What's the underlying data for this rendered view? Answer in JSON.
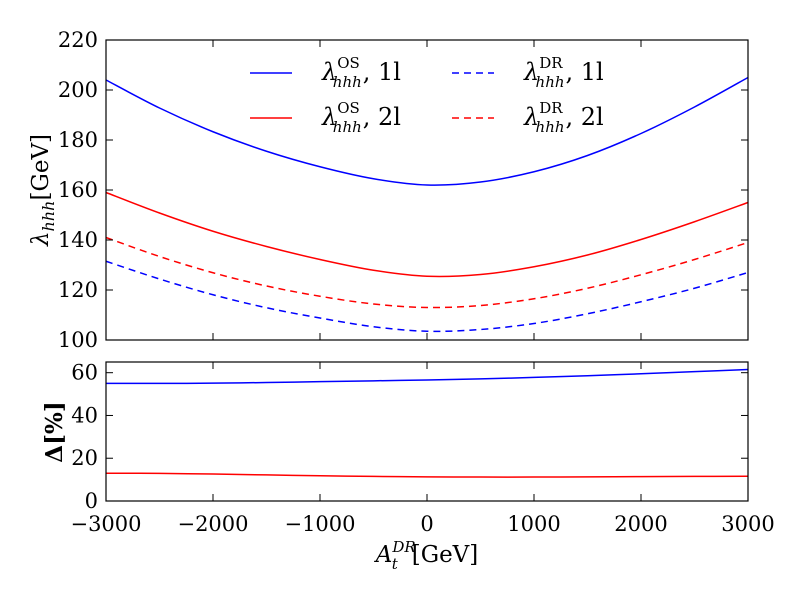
{
  "chart_data": [
    {
      "type": "line",
      "panel": "top",
      "title": "",
      "xlabel": "",
      "ylabel": "λ_hhh[GeV]",
      "ylabel_main": "λ",
      "ylabel_sub": "hhh",
      "ylabel_unit": "[GeV]",
      "xlim": [
        -3000,
        3000
      ],
      "ylim": [
        100,
        220
      ],
      "yticks": [
        100,
        120,
        140,
        160,
        180,
        200,
        220
      ],
      "x": [
        -3000,
        -2500,
        -2000,
        -1500,
        -1000,
        -500,
        0,
        500,
        1000,
        1500,
        2000,
        2500,
        3000
      ],
      "legend_position": "top-center",
      "series": [
        {
          "name": "λ_hhh^OS, 1l",
          "sup": "OS",
          "loop": "1l",
          "color": "#0000ff",
          "dash": "solid",
          "values": [
            204.0,
            192.8,
            183.3,
            175.5,
            169.3,
            164.5,
            162.0,
            163.2,
            167.3,
            173.8,
            182.6,
            193.2,
            205.0
          ]
        },
        {
          "name": "λ_hhh^OS, 2l",
          "sup": "OS",
          "loop": "2l",
          "color": "#ff0000",
          "dash": "solid",
          "values": [
            159.0,
            150.8,
            143.5,
            137.4,
            132.2,
            127.9,
            125.5,
            126.2,
            129.3,
            134.0,
            140.2,
            147.3,
            155.0
          ]
        },
        {
          "name": "λ_hhh^DR, 1l",
          "sup": "DR",
          "loop": "1l",
          "color": "#0000ff",
          "dash": "dashed",
          "values": [
            131.5,
            124.4,
            118.1,
            112.9,
            108.8,
            105.3,
            103.5,
            104.2,
            106.6,
            110.5,
            115.3,
            120.7,
            127.0
          ]
        },
        {
          "name": "λ_hhh^DR, 2l",
          "sup": "DR",
          "loop": "2l",
          "color": "#ff0000",
          "dash": "dashed",
          "values": [
            141.0,
            133.4,
            126.9,
            121.6,
            117.5,
            114.4,
            113.0,
            113.8,
            116.5,
            120.7,
            126.1,
            132.2,
            139.0
          ]
        }
      ]
    },
    {
      "type": "line",
      "panel": "bottom",
      "title": "",
      "xlabel": "A_t^DR[GeV]",
      "xlabel_main": "A",
      "xlabel_sub": "t",
      "xlabel_sup": "DR",
      "xlabel_unit": "[GeV]",
      "ylabel": "Δ[%]",
      "xlim": [
        -3000,
        3000
      ],
      "ylim": [
        0,
        65
      ],
      "yticks": [
        0,
        20,
        40,
        60
      ],
      "xticks": [
        -3000,
        -2000,
        -1000,
        0,
        1000,
        2000,
        3000
      ],
      "xtick_labels": [
        "−3000",
        "−2000",
        "−1000",
        "0",
        "1000",
        "2000",
        "3000"
      ],
      "x": [
        -3000,
        -2500,
        -2000,
        -1500,
        -1000,
        -500,
        0,
        500,
        1000,
        1500,
        2000,
        2500,
        3000
      ],
      "series": [
        {
          "name": "Δ 1l",
          "color": "#0000ff",
          "dash": "solid",
          "values": [
            55.0,
            55.0,
            55.1,
            55.4,
            55.8,
            56.2,
            56.6,
            57.1,
            57.8,
            58.6,
            59.5,
            60.5,
            61.5
          ]
        },
        {
          "name": "Δ 2l",
          "color": "#ff0000",
          "dash": "solid",
          "values": [
            13.0,
            12.9,
            12.6,
            12.2,
            11.8,
            11.5,
            11.3,
            11.2,
            11.2,
            11.3,
            11.4,
            11.5,
            11.6
          ]
        }
      ]
    }
  ]
}
